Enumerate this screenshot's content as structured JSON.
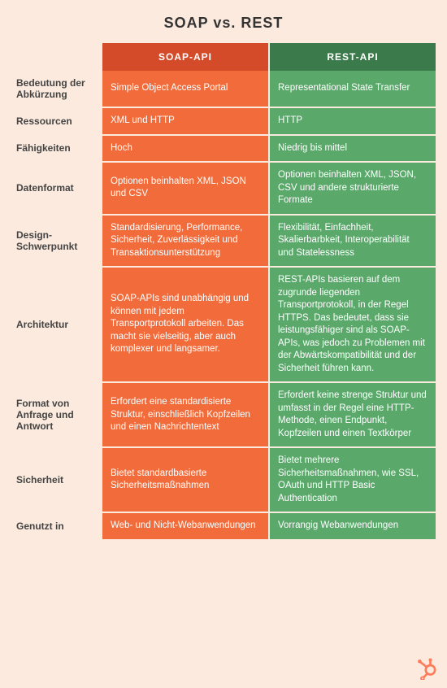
{
  "title": "SOAP vs. REST",
  "colors": {
    "background": "#fbeadd",
    "soap_header": "#d44b2a",
    "rest_header": "#3b7a4a",
    "soap_cell": "#f26b3a",
    "rest_cell": "#5aa96b",
    "label_text": "#444444",
    "cell_text": "#ffffff",
    "title_text": "#333333",
    "logo": "#ff7a59"
  },
  "headers": {
    "soap": "SOAP-API",
    "rest": "REST-API"
  },
  "rows": [
    {
      "label": "Bedeutung der Abkürzung",
      "soap": "Simple Object Access Portal",
      "rest": "Representational State Transfer"
    },
    {
      "label": "Ressourcen",
      "soap": "XML und HTTP",
      "rest": "HTTP"
    },
    {
      "label": "Fähigkeiten",
      "soap": "Hoch",
      "rest": "Niedrig bis mittel"
    },
    {
      "label": "Datenformat",
      "soap": "Optionen beinhalten XML, JSON und CSV",
      "rest": "Optionen beinhalten XML, JSON, CSV und andere strukturierte Formate"
    },
    {
      "label": "Design-Schwerpunkt",
      "soap": "Standardisierung, Performance, Sicherheit, Zuverlässigkeit und Transaktionsunterstützung",
      "rest": "Flexibilität, Einfachheit, Skalierbarbkeit, Interoperabilität und Statelessness"
    },
    {
      "label": "Architektur",
      "soap": "SOAP-APIs sind unabhängig und können mit jedem Transportprotokoll arbeiten. Das macht sie vielseitig, aber auch komplexer und langsamer.",
      "rest": "REST-APIs basieren auf dem zugrunde liegenden Transportprotokoll, in der Regel HTTPS. Das bedeutet, dass sie leistungsfähiger sind als SOAP-APIs, was jedoch zu Problemen mit der Abwärtskompatibilität und der Sicherheit führen kann."
    },
    {
      "label": "Format von Anfrage und Antwort",
      "soap": "Erfordert eine standardisierte Struktur, einschließlich Kopfzeilen und einen Nachrichtentext",
      "rest": "Erfordert keine strenge Struktur und umfasst in der Regel eine HTTP-Methode, einen Endpunkt, Kopfzeilen und einen Textkörper"
    },
    {
      "label": "Sicherheit",
      "soap": "Bietet standardbasierte Sicherheitsmaßnahmen",
      "rest": "Bietet mehrere Sicherheitsmaßnahmen, wie SSL, OAuth und HTTP Basic Authentication"
    },
    {
      "label": "Genutzt in",
      "soap": "Web- und Nicht-Webanwendungen",
      "rest": "Vorrangig Webanwendungen"
    }
  ]
}
